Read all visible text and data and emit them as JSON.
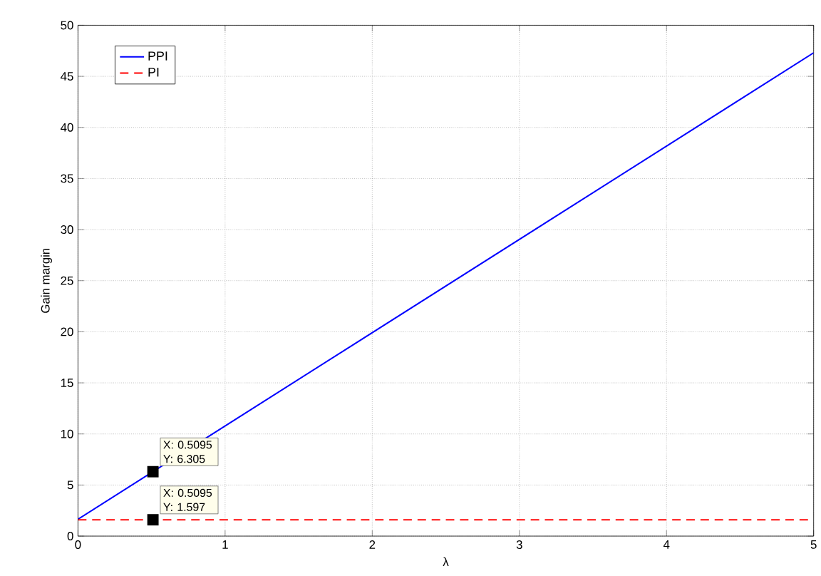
{
  "chart_data": {
    "type": "line",
    "xlabel": "λ",
    "ylabel": "Gain margin",
    "xlim": [
      0,
      5
    ],
    "ylim": [
      0,
      50
    ],
    "xticks": [
      0,
      1,
      2,
      3,
      4,
      5
    ],
    "yticks": [
      0,
      5,
      10,
      15,
      20,
      25,
      30,
      35,
      40,
      45,
      50
    ],
    "grid": true,
    "legend": "top left",
    "series": [
      {
        "name": "PPI",
        "color": "#0000ff",
        "line_style": "solid",
        "x": [
          0,
          0.5095,
          5
        ],
        "values": [
          1.65,
          6.305,
          47.3
        ]
      },
      {
        "name": "PI",
        "color": "#ff0000",
        "line_style": "dashed",
        "x": [
          0,
          5
        ],
        "values": [
          1.597,
          1.597
        ]
      }
    ],
    "annotations": [
      {
        "text": "X: 0.5095 Y: 6.305",
        "x": 0.5095,
        "y": 6.305
      },
      {
        "text": "X: 0.5095 Y: 1.597",
        "x": 0.5095,
        "y": 1.597
      }
    ]
  }
}
